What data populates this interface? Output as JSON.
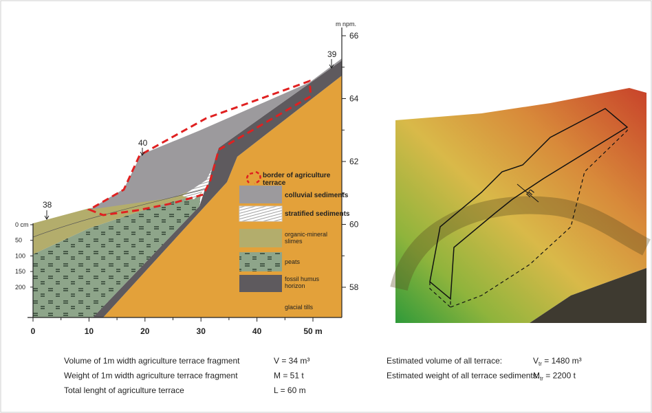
{
  "cross_section": {
    "elevation_unit": "m npm.",
    "elevation_ticks": [
      "66",
      "64",
      "62",
      "60",
      "58"
    ],
    "distance_ticks": [
      "0",
      "10",
      "20",
      "30",
      "40",
      "50 m"
    ],
    "depth_ticks": [
      "0 cm",
      "50",
      "100",
      "150",
      "200"
    ],
    "point_labels": [
      "38",
      "40",
      "39"
    ],
    "legend": {
      "border": [
        "border of agriculture",
        "terrace"
      ],
      "colluvial": [
        "colluvial sediments"
      ],
      "stratified": [
        "stratified sediments"
      ],
      "organic": [
        "organic-mineral",
        "slimes"
      ],
      "peats": [
        "peats"
      ],
      "fossil": [
        "fossil humus",
        "horizon"
      ],
      "glacial": [
        "glacial tills"
      ]
    }
  },
  "model": {
    "width_label": "m"
  },
  "stats_left": [
    {
      "label": "Volume of 1m width agriculture terrace fragment",
      "value": "V = 34 m³"
    },
    {
      "label": "Weight of 1m width agriculture terrace fragment",
      "value": "M = 51 t"
    },
    {
      "label": "Total lenght of agriculture terrace",
      "value": "L = 60 m"
    }
  ],
  "stats_right": [
    {
      "label": "Estimated volume of all terrace:",
      "symbol": "V",
      "subscript": "tr",
      "value": " = 1480 m³"
    },
    {
      "label": "Estimated weight of all terrace sediments:",
      "symbol": "M",
      "subscript": "tr",
      "value": " = 2200 t"
    }
  ]
}
